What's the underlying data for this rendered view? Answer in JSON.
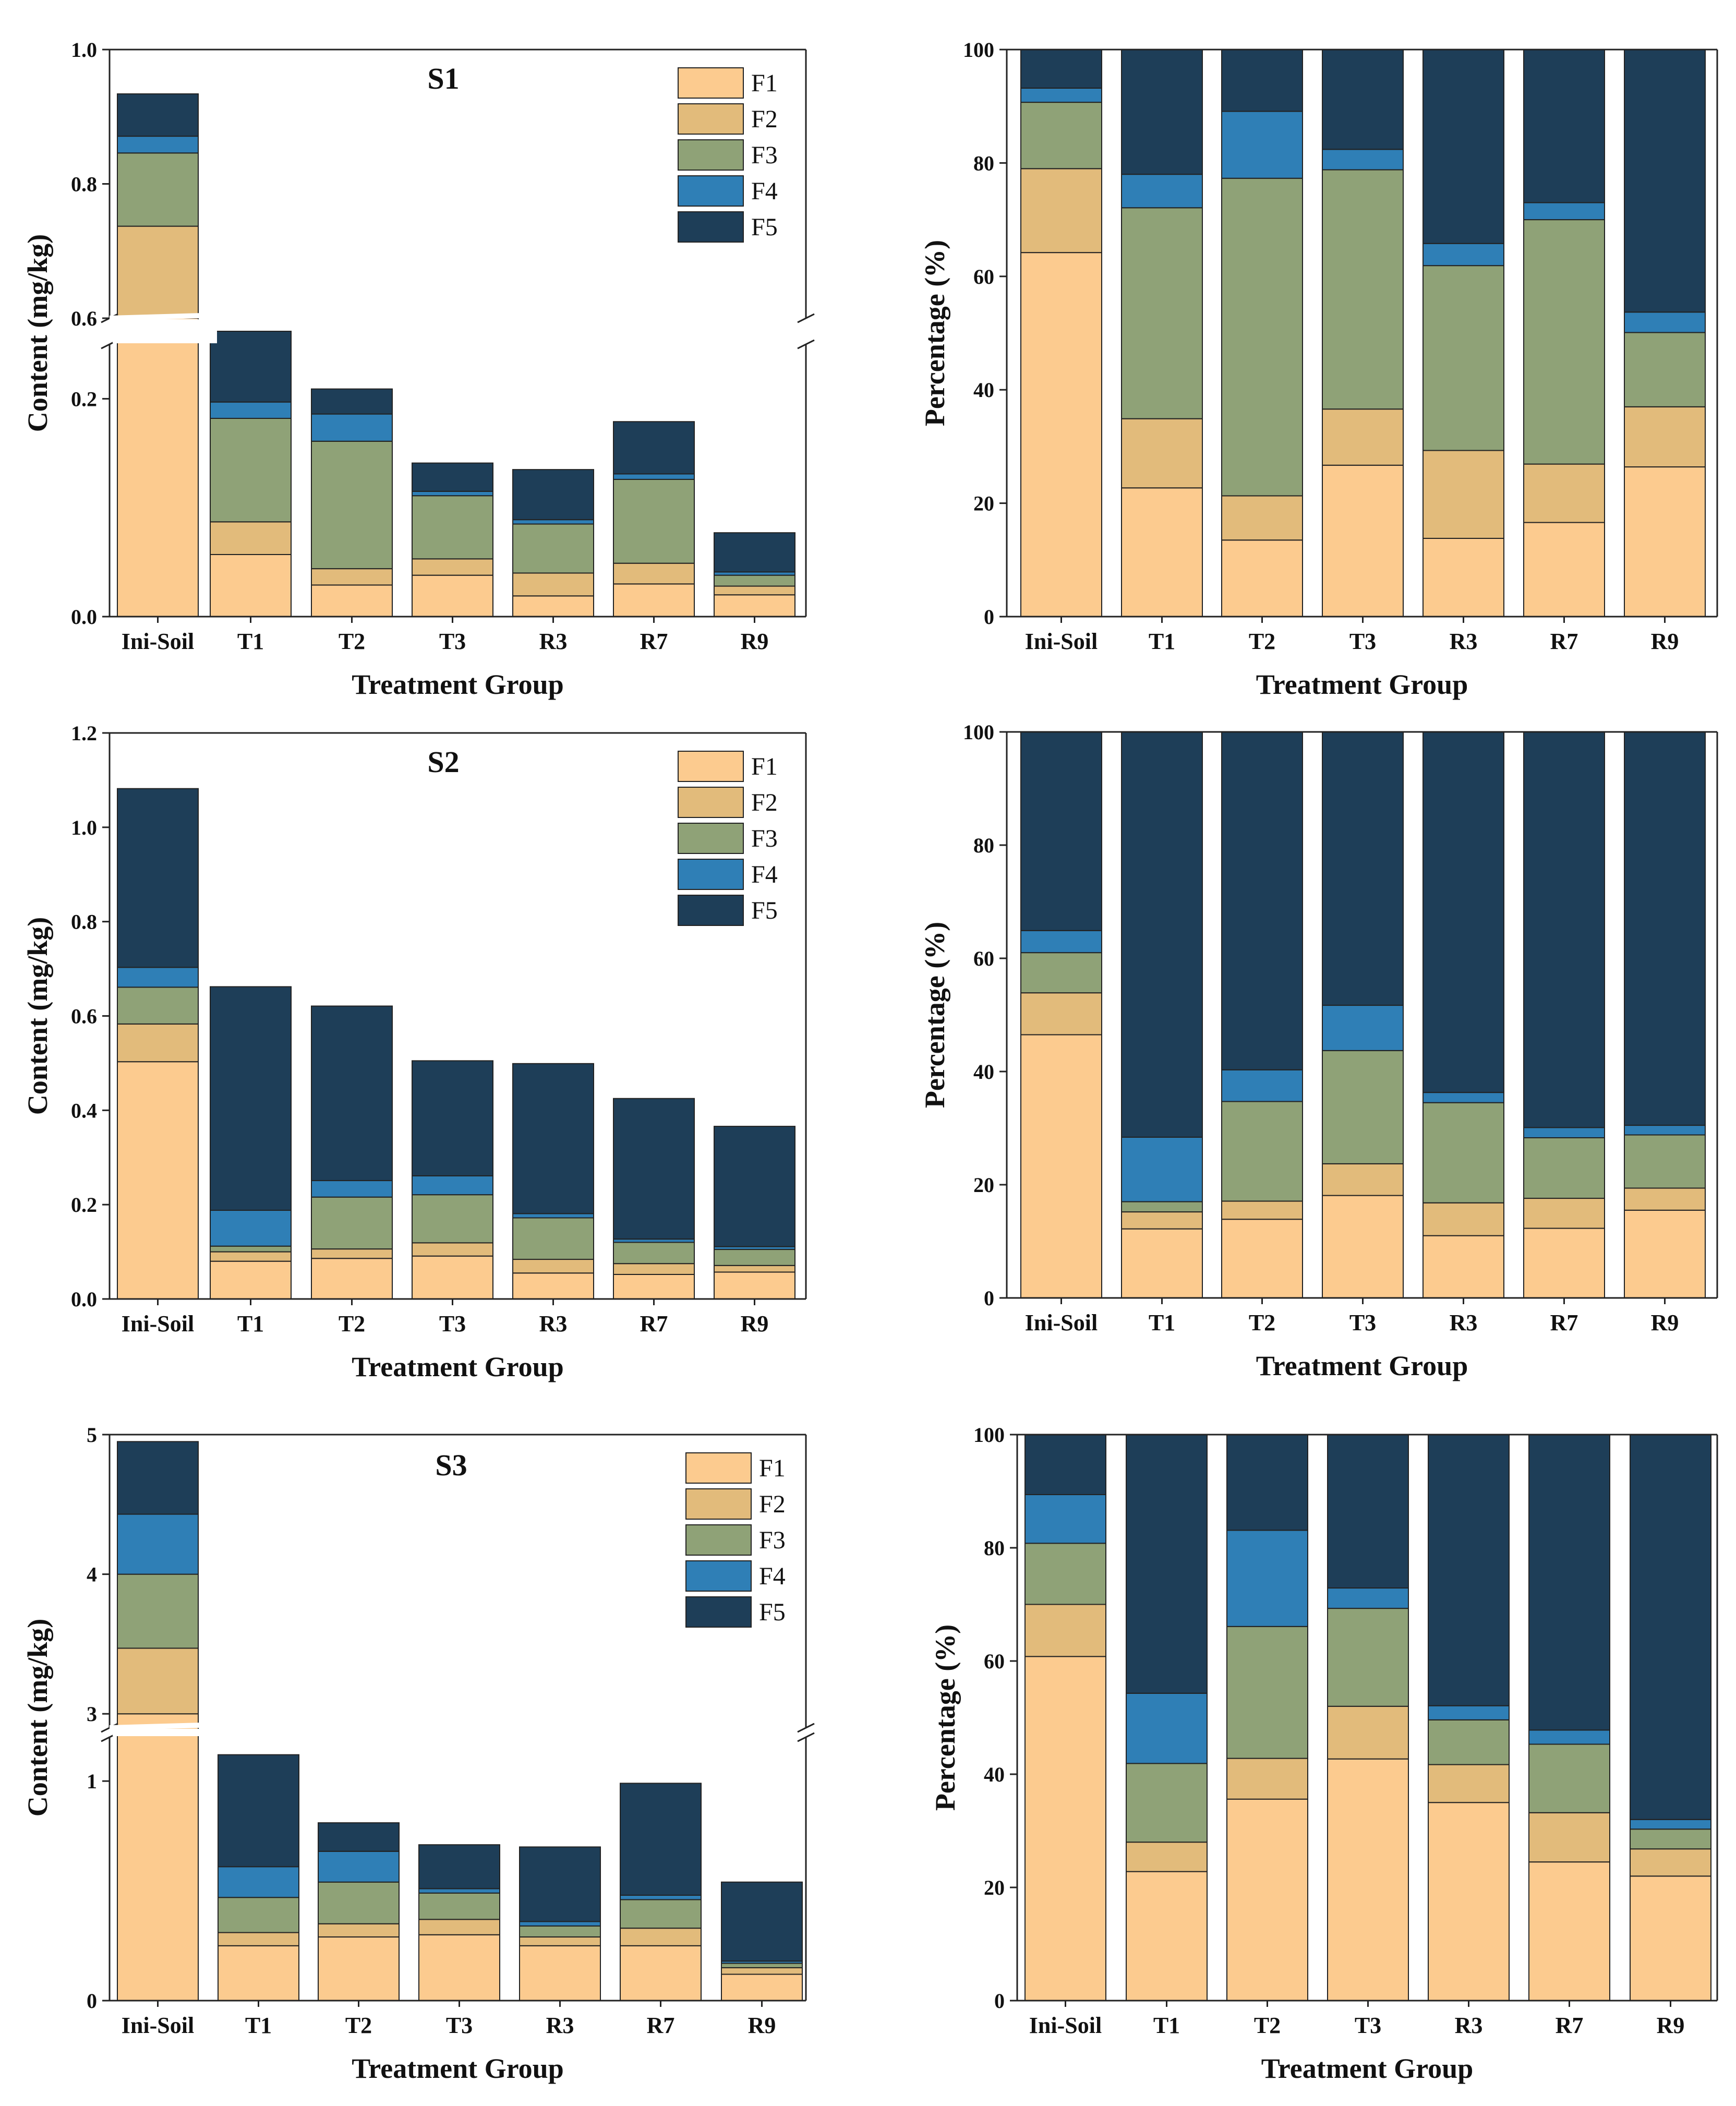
{
  "colors": {
    "F1": "#FCCB8F",
    "F2": "#E2BB7B",
    "F3": "#8FA277",
    "F4": "#2F7FB6",
    "F5": "#1E3E58"
  },
  "chart_data": [
    {
      "type": "bar",
      "stacked": true,
      "title": "S1",
      "xlabel": "Treatment Group",
      "ylabel": "Content (mg/kg)",
      "categories": [
        "Ini-Soil",
        "T1",
        "T2",
        "T3",
        "R3",
        "R7",
        "R9"
      ],
      "axis_break": {
        "lower": [
          0.0,
          0.25
        ],
        "upper": [
          0.6,
          1.0
        ]
      },
      "ylim": [
        0,
        1.0
      ],
      "yticks": [
        "0.0",
        "0.2",
        "0.6",
        "0.8",
        "1.0"
      ],
      "legend_position": "top-right",
      "series": [
        {
          "name": "F1",
          "values": [
            0.6,
            0.057,
            0.029,
            0.038,
            0.019,
            0.03,
            0.02
          ]
        },
        {
          "name": "F2",
          "values": [
            0.137,
            0.03,
            0.015,
            0.015,
            0.021,
            0.019,
            0.008
          ]
        },
        {
          "name": "F3",
          "values": [
            0.109,
            0.095,
            0.117,
            0.058,
            0.045,
            0.077,
            0.01
          ]
        },
        {
          "name": "F4",
          "values": [
            0.025,
            0.015,
            0.025,
            0.004,
            0.004,
            0.005,
            0.003
          ]
        },
        {
          "name": "F5",
          "values": [
            0.063,
            0.055,
            0.023,
            0.026,
            0.046,
            0.048,
            0.036
          ]
        }
      ]
    },
    {
      "type": "bar",
      "stacked": true,
      "title": "",
      "xlabel": "Treatment Group",
      "ylabel": "Percentage (%)",
      "categories": [
        "Ini-Soil",
        "T1",
        "T2",
        "T3",
        "R3",
        "R7",
        "R9"
      ],
      "ylim": [
        0,
        100
      ],
      "yticks": [
        "0",
        "20",
        "40",
        "60",
        "80",
        "100"
      ],
      "series": [
        {
          "name": "F1",
          "values": [
            64.2,
            22.7,
            13.5,
            26.7,
            13.8,
            16.6,
            26.4
          ]
        },
        {
          "name": "F2",
          "values": [
            14.8,
            12.2,
            7.8,
            9.9,
            15.5,
            10.3,
            10.6
          ]
        },
        {
          "name": "F3",
          "values": [
            11.7,
            37.2,
            56.0,
            42.2,
            32.6,
            43.1,
            13.1
          ]
        },
        {
          "name": "F4",
          "values": [
            2.5,
            5.9,
            11.8,
            3.6,
            3.9,
            3.0,
            3.6
          ]
        },
        {
          "name": "F5",
          "values": [
            6.8,
            22.0,
            10.9,
            17.6,
            34.2,
            27.0,
            46.3
          ]
        }
      ]
    },
    {
      "type": "bar",
      "stacked": true,
      "title": "S2",
      "xlabel": "Treatment Group",
      "ylabel": "Content (mg/kg)",
      "categories": [
        "Ini-Soil",
        "T1",
        "T2",
        "T3",
        "R3",
        "R7",
        "R9"
      ],
      "ylim": [
        0,
        1.2
      ],
      "yticks": [
        "0.0",
        "0.2",
        "0.4",
        "0.6",
        "0.8",
        "1.0",
        "1.2"
      ],
      "legend_position": "top-right",
      "series": [
        {
          "name": "F1",
          "values": [
            0.503,
            0.08,
            0.086,
            0.091,
            0.055,
            0.052,
            0.057
          ]
        },
        {
          "name": "F2",
          "values": [
            0.08,
            0.02,
            0.02,
            0.028,
            0.029,
            0.023,
            0.014
          ]
        },
        {
          "name": "F3",
          "values": [
            0.078,
            0.012,
            0.11,
            0.102,
            0.088,
            0.045,
            0.034
          ]
        },
        {
          "name": "F4",
          "values": [
            0.042,
            0.076,
            0.035,
            0.04,
            0.009,
            0.007,
            0.006
          ]
        },
        {
          "name": "F5",
          "values": [
            0.379,
            0.474,
            0.37,
            0.244,
            0.318,
            0.298,
            0.255
          ]
        }
      ]
    },
    {
      "type": "bar",
      "stacked": true,
      "title": "",
      "xlabel": "Treatment Group",
      "ylabel": "Percentage (%)",
      "categories": [
        "Ini-Soil",
        "T1",
        "T2",
        "T3",
        "R3",
        "R7",
        "R9"
      ],
      "ylim": [
        0,
        100
      ],
      "yticks": [
        "0",
        "20",
        "40",
        "60",
        "80",
        "100"
      ],
      "series": [
        {
          "name": "F1",
          "values": [
            46.5,
            12.2,
            13.9,
            18.1,
            11.0,
            12.3,
            15.5
          ]
        },
        {
          "name": "F2",
          "values": [
            7.4,
            3.0,
            3.2,
            5.6,
            5.8,
            5.3,
            3.9
          ]
        },
        {
          "name": "F3",
          "values": [
            7.1,
            1.8,
            17.6,
            20.0,
            17.7,
            10.7,
            9.4
          ]
        },
        {
          "name": "F4",
          "values": [
            3.9,
            11.4,
            5.6,
            8.0,
            1.8,
            1.8,
            1.7
          ]
        },
        {
          "name": "F5",
          "values": [
            35.1,
            71.6,
            59.7,
            48.3,
            63.7,
            69.9,
            69.5
          ]
        }
      ]
    },
    {
      "type": "bar",
      "stacked": true,
      "title": "S3",
      "xlabel": "Treatment Group",
      "ylabel": "Content (mg/kg)",
      "categories": [
        "Ini-Soil",
        "T1",
        "T2",
        "T3",
        "R3",
        "R7",
        "R9"
      ],
      "axis_break": {
        "lower": [
          0,
          1.2
        ],
        "upper": [
          2.9,
          5
        ]
      },
      "ylim": [
        0,
        5
      ],
      "yticks": [
        "0",
        "1",
        "3",
        "4",
        "5"
      ],
      "legend_position": "top-right",
      "series": [
        {
          "name": "F1",
          "values": [
            3.0,
            0.25,
            0.29,
            0.3,
            0.25,
            0.25,
            0.12
          ]
        },
        {
          "name": "F2",
          "values": [
            0.47,
            0.06,
            0.06,
            0.07,
            0.04,
            0.08,
            0.03
          ]
        },
        {
          "name": "F3",
          "values": [
            0.53,
            0.16,
            0.19,
            0.12,
            0.05,
            0.13,
            0.02
          ]
        },
        {
          "name": "F4",
          "values": [
            0.43,
            0.14,
            0.14,
            0.02,
            0.02,
            0.02,
            0.01
          ]
        },
        {
          "name": "F5",
          "values": [
            0.52,
            0.51,
            0.13,
            0.2,
            0.34,
            0.51,
            0.36
          ]
        }
      ]
    },
    {
      "type": "bar",
      "stacked": true,
      "title": "",
      "xlabel": "Treatment Group",
      "ylabel": "Percentage (%)",
      "categories": [
        "Ini-Soil",
        "T1",
        "T2",
        "T3",
        "R3",
        "R7",
        "R9"
      ],
      "ylim": [
        0,
        100
      ],
      "yticks": [
        "0",
        "20",
        "40",
        "60",
        "80",
        "100"
      ],
      "series": [
        {
          "name": "F1",
          "values": [
            60.8,
            22.8,
            35.6,
            42.7,
            35.0,
            24.5,
            22.0
          ]
        },
        {
          "name": "F2",
          "values": [
            9.2,
            5.2,
            7.2,
            9.3,
            6.7,
            8.7,
            4.8
          ]
        },
        {
          "name": "F3",
          "values": [
            10.8,
            13.9,
            23.3,
            17.3,
            7.9,
            12.1,
            3.5
          ]
        },
        {
          "name": "F4",
          "values": [
            8.6,
            12.4,
            17.0,
            3.6,
            2.5,
            2.5,
            1.7
          ]
        },
        {
          "name": "F5",
          "values": [
            10.6,
            45.7,
            16.9,
            27.1,
            47.9,
            52.2,
            68.0
          ]
        }
      ]
    }
  ]
}
